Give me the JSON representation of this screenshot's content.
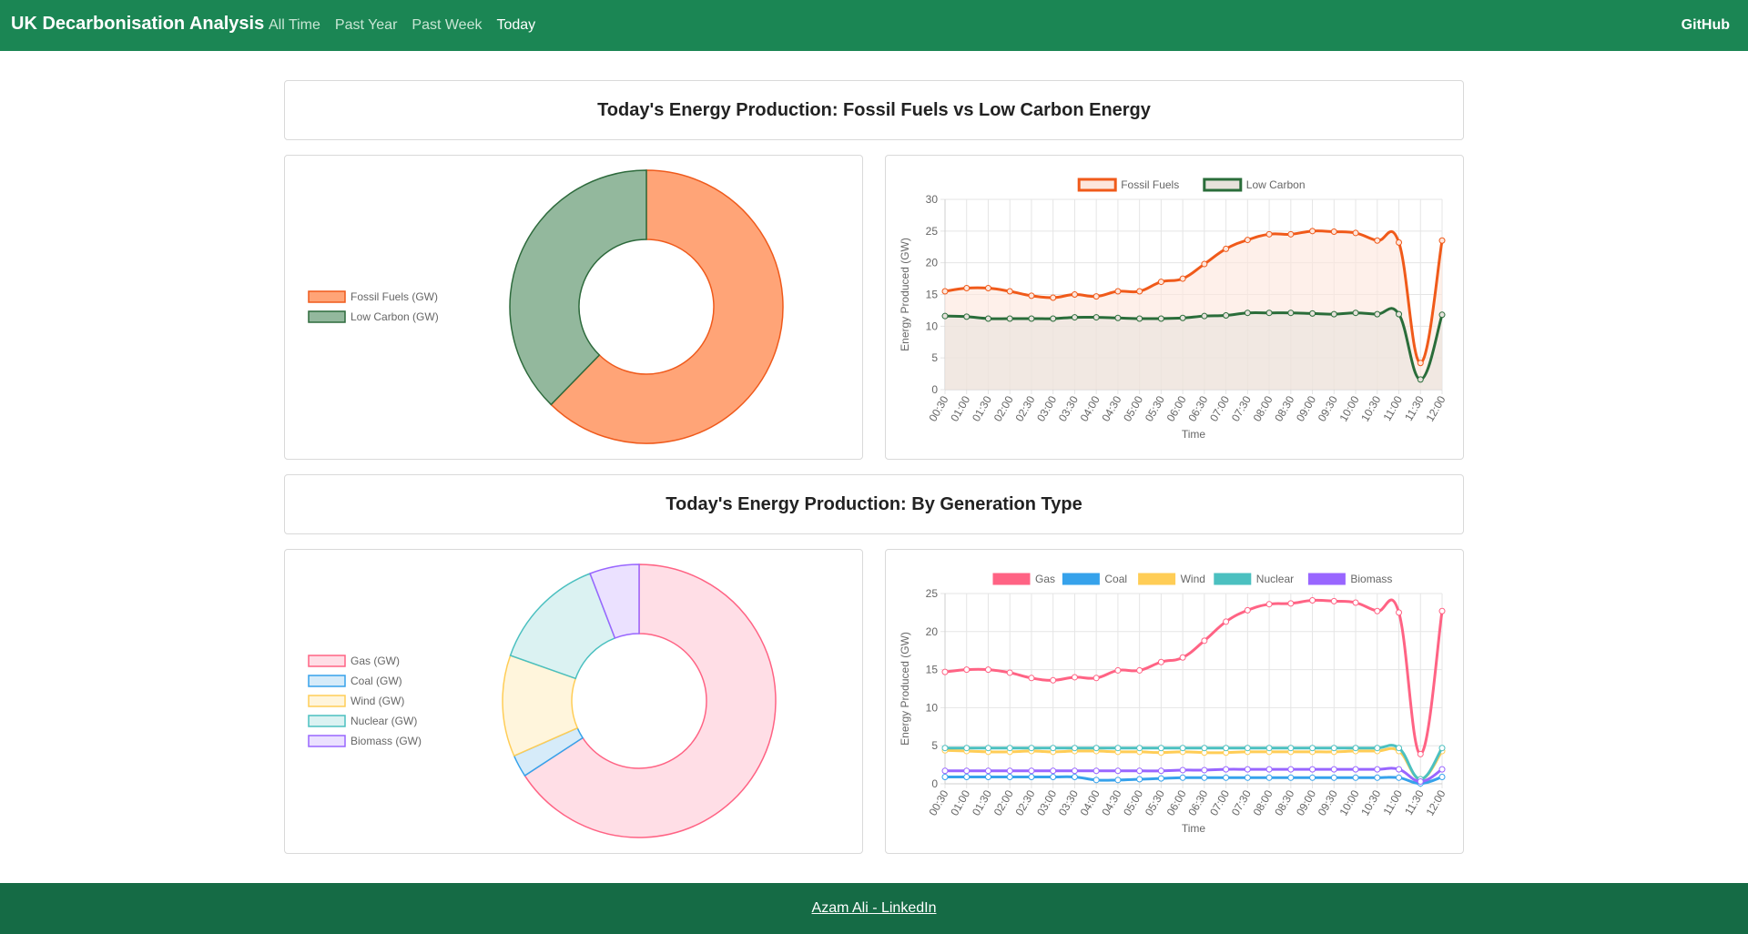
{
  "nav": {
    "brand": "UK Decarbonisation Analysis",
    "links": [
      "All Time",
      "Past Year",
      "Past Week",
      "Today"
    ],
    "github": "GitHub"
  },
  "section1": {
    "title": "Today's Energy Production: Fossil Fuels vs Low Carbon Energy"
  },
  "section2": {
    "title": "Today's Energy Production: By Generation Type"
  },
  "footer": {
    "link": "Azam Ali - LinkedIn"
  },
  "chart_data": [
    {
      "type": "pie",
      "variant": "doughnut",
      "legend_position": "left",
      "labels": [
        "Fossil Fuels (GW)",
        "Low Carbon (GW)"
      ],
      "values": [
        19.0,
        11.5
      ],
      "colors": [
        "#ffa477",
        "#93b89d"
      ],
      "border_colors": [
        "#ef5a1c",
        "#2d6a3c"
      ]
    },
    {
      "type": "line",
      "legend_position": "top",
      "xlabel": "Time",
      "ylabel": "Energy Produced (GW)",
      "ylim": [
        0,
        30
      ],
      "yticks": [
        0,
        5,
        10,
        15,
        20,
        25,
        30
      ],
      "grid": true,
      "x": [
        "00:30",
        "01:00",
        "01:30",
        "02:00",
        "02:30",
        "03:00",
        "03:30",
        "04:00",
        "04:30",
        "05:00",
        "05:30",
        "06:00",
        "06:30",
        "07:00",
        "07:30",
        "08:00",
        "08:30",
        "09:00",
        "09:30",
        "10:00",
        "10:30",
        "11:00",
        "11:30",
        "12:00"
      ],
      "series": [
        {
          "name": "Fossil Fuels",
          "color": "#f05a1a",
          "fill": "#fde6dc",
          "values": [
            15.5,
            16,
            16,
            15.5,
            14.8,
            14.5,
            15,
            14.7,
            15.5,
            15.5,
            17,
            17.5,
            19.8,
            22.2,
            23.6,
            24.5,
            24.5,
            25,
            24.9,
            24.7,
            23.5,
            23.2,
            4.2,
            23.5
          ]
        },
        {
          "name": "Low Carbon",
          "color": "#2a6d3a",
          "fill": "#e7e2dc",
          "values": [
            11.6,
            11.5,
            11.2,
            11.2,
            11.2,
            11.2,
            11.4,
            11.4,
            11.3,
            11.2,
            11.2,
            11.3,
            11.6,
            11.7,
            12.1,
            12.1,
            12.1,
            12,
            11.9,
            12.1,
            11.9,
            11.9,
            1.6,
            11.8
          ]
        }
      ]
    },
    {
      "type": "pie",
      "variant": "doughnut",
      "legend_position": "left",
      "labels": [
        "Gas (GW)",
        "Coal (GW)",
        "Wind (GW)",
        "Nuclear (GW)",
        "Biomass (GW)"
      ],
      "values": [
        22.5,
        0.9,
        4.1,
        4.7,
        2.0
      ],
      "colors": [
        "#ffdee6",
        "#d6ebf9",
        "#fff5dc",
        "#dbf2f2",
        "#ebe1ff"
      ],
      "border_colors": [
        "#ff6384",
        "#36a2eb",
        "#ffcd56",
        "#4bc0c0",
        "#9966ff"
      ]
    },
    {
      "type": "line",
      "legend_position": "top",
      "xlabel": "Time",
      "ylabel": "Energy Produced (GW)",
      "ylim": [
        0,
        25
      ],
      "yticks": [
        0,
        5,
        10,
        15,
        20,
        25
      ],
      "grid": true,
      "x": [
        "00:30",
        "01:00",
        "01:30",
        "02:00",
        "02:30",
        "03:00",
        "03:30",
        "04:00",
        "04:30",
        "05:00",
        "05:30",
        "06:00",
        "06:30",
        "07:00",
        "07:30",
        "08:00",
        "08:30",
        "09:00",
        "09:30",
        "10:00",
        "10:30",
        "11:00",
        "11:30",
        "12:00"
      ],
      "series": [
        {
          "name": "Gas",
          "color": "#ff6384",
          "values": [
            14.7,
            15,
            15,
            14.6,
            13.9,
            13.6,
            14,
            13.9,
            14.9,
            14.9,
            16,
            16.6,
            18.8,
            21.3,
            22.8,
            23.6,
            23.7,
            24.1,
            24,
            23.8,
            22.7,
            22.5,
            3.9,
            22.7
          ]
        },
        {
          "name": "Coal",
          "color": "#36a2eb",
          "values": [
            0.9,
            0.9,
            0.9,
            0.9,
            0.9,
            0.9,
            0.9,
            0.5,
            0.5,
            0.6,
            0.7,
            0.8,
            0.8,
            0.8,
            0.8,
            0.8,
            0.8,
            0.8,
            0.8,
            0.8,
            0.8,
            0.8,
            0.05,
            0.9
          ]
        },
        {
          "name": "Wind",
          "color": "#ffcd56",
          "values": [
            4.4,
            4.3,
            4.2,
            4.2,
            4.3,
            4.2,
            4.3,
            4.3,
            4.2,
            4.2,
            4.1,
            4.2,
            4.1,
            4.1,
            4.2,
            4.2,
            4.2,
            4.2,
            4.2,
            4.3,
            4.3,
            4.3,
            0.6,
            4.3
          ]
        },
        {
          "name": "Nuclear",
          "color": "#4bc0c0",
          "values": [
            4.7,
            4.7,
            4.7,
            4.7,
            4.7,
            4.7,
            4.7,
            4.7,
            4.7,
            4.7,
            4.7,
            4.7,
            4.7,
            4.7,
            4.7,
            4.7,
            4.7,
            4.7,
            4.7,
            4.7,
            4.7,
            4.7,
            0.6,
            4.7
          ]
        },
        {
          "name": "Biomass",
          "color": "#9966ff",
          "values": [
            1.7,
            1.7,
            1.7,
            1.7,
            1.7,
            1.7,
            1.7,
            1.7,
            1.7,
            1.7,
            1.7,
            1.8,
            1.8,
            1.9,
            1.9,
            1.9,
            1.9,
            1.9,
            1.9,
            1.9,
            1.9,
            1.9,
            0.3,
            1.9
          ]
        }
      ]
    }
  ]
}
